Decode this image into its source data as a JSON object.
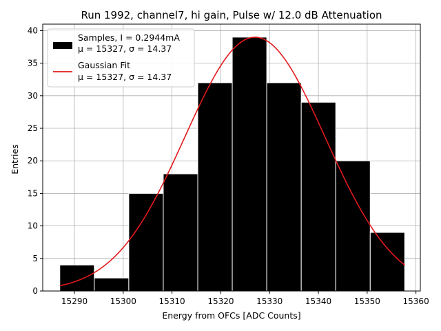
{
  "chart_data": {
    "type": "bar",
    "title": "Run 1992, channel7, hi gain, Pulse w/ 12.0 dB Attenuation",
    "xlabel": "Energy from OFCs [ADC Counts]",
    "ylabel": "Entries",
    "xlim": [
      15283.5,
      15360.9
    ],
    "ylim": [
      0,
      41
    ],
    "grid": true,
    "legend_placement": "top-left",
    "x_ticks": [
      15290,
      15300,
      15310,
      15320,
      15330,
      15340,
      15350,
      15360
    ],
    "y_ticks": [
      0,
      5,
      10,
      15,
      20,
      25,
      30,
      35,
      40
    ],
    "bins": {
      "edges": [
        15287.0,
        15294.07,
        15301.14,
        15308.21,
        15315.28,
        15322.35,
        15329.42,
        15336.49,
        15343.56,
        15350.63,
        15357.7
      ],
      "counts": [
        4,
        2,
        15,
        18,
        32,
        39,
        32,
        29,
        20,
        9
      ]
    },
    "series": [
      {
        "name": "Samples, I = 0.2944mA",
        "name_line2": "μ = 15327, σ = 14.37",
        "kind": "histogram",
        "color": "#000000"
      },
      {
        "name": "Gaussian Fit",
        "name_line2": "μ = 15327, σ = 14.37",
        "kind": "line",
        "color": "#e31a1c",
        "fit": {
          "amplitude": 39,
          "mean": 15327,
          "sigma": 14.37,
          "x_range": [
            15287.0,
            15357.7
          ]
        }
      }
    ]
  }
}
